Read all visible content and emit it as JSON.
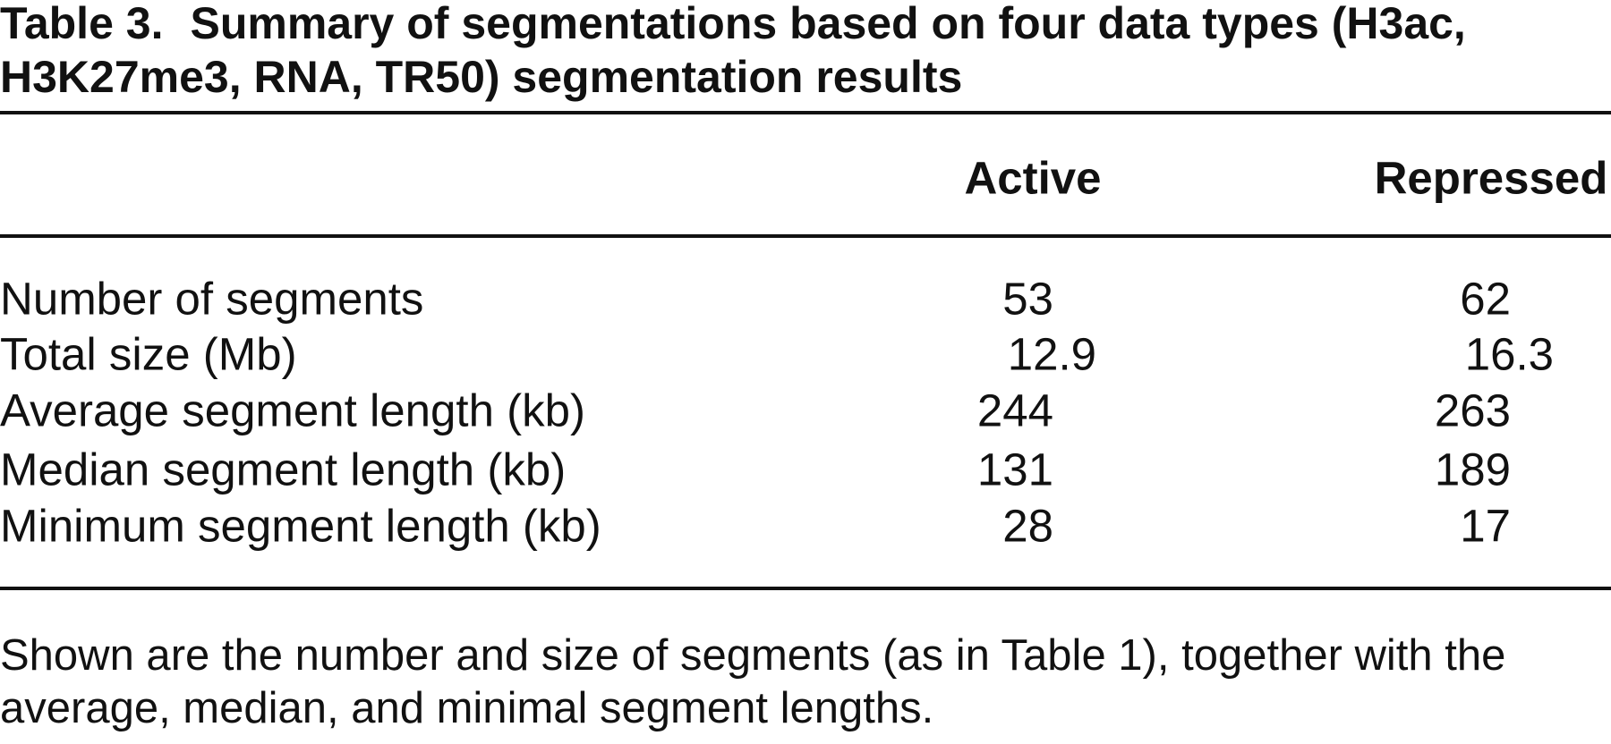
{
  "title": {
    "label": "Table 3.",
    "text": "Summary of segmentations based on four data types (H3ac, H3K27me3, RNA, TR50) segmentation results"
  },
  "table": {
    "columns": [
      "Active",
      "Repressed"
    ],
    "rows": [
      [
        "Number of segments",
        53,
        62
      ],
      [
        "Total size (Mb)",
        12.9,
        16.3
      ],
      [
        "Average segment length (kb)",
        244,
        263
      ],
      [
        "Median segment length (kb)",
        131,
        189
      ],
      [
        "Minimum segment length (kb)",
        28,
        17
      ]
    ]
  },
  "footnote": "Shown are the number and size of segments (as in Table 1), together with the average, median, and minimal segment lengths."
}
